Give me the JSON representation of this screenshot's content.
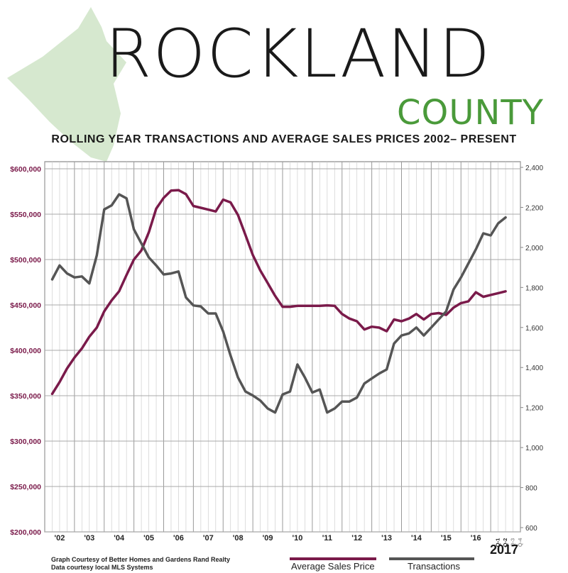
{
  "header": {
    "title": "ROCKLAND",
    "subtitle": "COUNTY",
    "headline": "ROLLING YEAR TRANSACTIONS AND AVERAGE SALES PRICES 2002– PRESENT"
  },
  "credits": {
    "line1": "Graph Courtesy of Better Homes and Gardens Rand Realty",
    "line2": "Data courtesy local MLS Systems"
  },
  "legend": {
    "price_label": "Average Sales Price",
    "transactions_label": "Transactions"
  },
  "colors": {
    "price": "#7a1a4a",
    "transactions": "#555555",
    "map": "#d6e8cf",
    "county": "#4a9a3a"
  },
  "chart_data": {
    "type": "line",
    "title": "ROLLING YEAR TRANSACTIONS AND AVERAGE SALES PRICES 2002– PRESENT",
    "x_labels": [
      "'02",
      "'03",
      "'04",
      "'05",
      "'06",
      "'07",
      "'08",
      "'09",
      "'10",
      "'11",
      "'12",
      "'13",
      "'14",
      "'15",
      "'16"
    ],
    "final_year": "2017",
    "final_quarters": [
      "Q-1",
      "Q-2",
      "Q-3",
      "Q-4"
    ],
    "y_left_ticks": [
      "$600,000",
      "$550,000",
      "$500,000",
      "$450,000",
      "$400,000",
      "$350,000",
      "$300,000",
      "$250,000",
      "$200,000"
    ],
    "y_left_range": [
      200000,
      600000
    ],
    "y_right_ticks": [
      "2,400",
      "2,200",
      "2,000",
      "1,800",
      "1,600",
      "1,400",
      "1,200",
      "1,000",
      "800",
      "600"
    ],
    "y_right_range": [
      600,
      2400
    ],
    "grid": true,
    "series": [
      {
        "name": "Average Sales Price",
        "axis": "left",
        "values": [
          352000,
          365000,
          380000,
          392000,
          402000,
          415000,
          425000,
          443000,
          455000,
          465000,
          483000,
          500000,
          510000,
          530000,
          556000,
          568000,
          576000,
          576500,
          572000,
          559000,
          557000,
          555000,
          553000,
          566000,
          563000,
          549000,
          527000,
          505000,
          488000,
          474000,
          460000,
          448000,
          448000,
          449000,
          449000,
          449000,
          449000,
          449500,
          449000,
          440000,
          435000,
          432000,
          423000,
          426000,
          425000,
          421000,
          434000,
          432000,
          435000,
          440000,
          434000,
          440000,
          441000,
          439000,
          447000,
          452000,
          454000,
          464000,
          459000,
          461000,
          463000,
          465000
        ],
        "start": 2002.0,
        "step": 0.25
      },
      {
        "name": "Transactions",
        "axis": "right",
        "values": [
          1840,
          1910,
          1870,
          1850,
          1855,
          1820,
          1960,
          2190,
          2210,
          2265,
          2245,
          2090,
          2020,
          1950,
          1910,
          1865,
          1870,
          1880,
          1750,
          1710,
          1705,
          1670,
          1670,
          1580,
          1460,
          1350,
          1280,
          1260,
          1235,
          1195,
          1175,
          1265,
          1280,
          1415,
          1350,
          1275,
          1290,
          1175,
          1195,
          1230,
          1230,
          1250,
          1320,
          1345,
          1370,
          1390,
          1520,
          1560,
          1570,
          1600,
          1560,
          1600,
          1640,
          1680,
          1790,
          1850,
          1920,
          1990,
          2070,
          2060,
          2120,
          2150
        ],
        "start": 2002.0,
        "step": 0.25
      }
    ]
  }
}
